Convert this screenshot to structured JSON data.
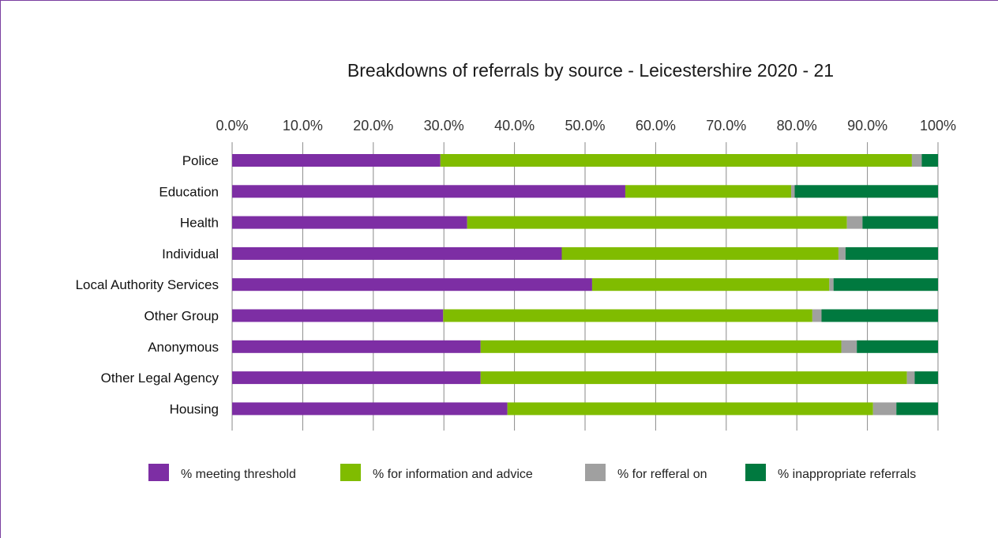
{
  "chart_data": {
    "type": "bar",
    "orientation": "horizontal",
    "stacked": true,
    "title": "Breakdowns of referrals by source - Leicestershire 2020 - 21",
    "x_tick_labels": [
      "0.0%",
      "10.0%",
      "20.0%",
      "30.0%",
      "40.0%",
      "50.0%",
      "60.0%",
      "70.0%",
      "80.0%",
      "90.0%",
      "100%"
    ],
    "xlim": [
      0,
      100
    ],
    "grid": "vertical",
    "legend_position": "bottom",
    "categories": [
      "Police",
      "Education",
      "Health",
      "Individual",
      "Local Authority Services",
      "Other Group",
      "Anonymous",
      "Other Legal Agency",
      "Housing"
    ],
    "series": [
      {
        "name": "% meeting threshold",
        "color": "#7d2ea4",
        "values": [
          29.5,
          55.7,
          33.3,
          46.7,
          51.0,
          29.9,
          35.2,
          35.2,
          39.0
        ]
      },
      {
        "name": "% for information and advice",
        "color": "#80bc00",
        "values": [
          66.8,
          23.5,
          53.8,
          39.2,
          33.6,
          52.3,
          51.1,
          60.4,
          51.8
        ]
      },
      {
        "name": "% for refferal on",
        "color": "#a0a0a0",
        "values": [
          1.4,
          0.5,
          2.2,
          1.0,
          0.6,
          1.3,
          2.2,
          1.1,
          3.3
        ]
      },
      {
        "name": "% inappropriate referrals",
        "color": "#00793f",
        "values": [
          2.3,
          20.3,
          10.7,
          13.1,
          14.8,
          16.5,
          11.5,
          3.3,
          5.9
        ]
      }
    ]
  }
}
